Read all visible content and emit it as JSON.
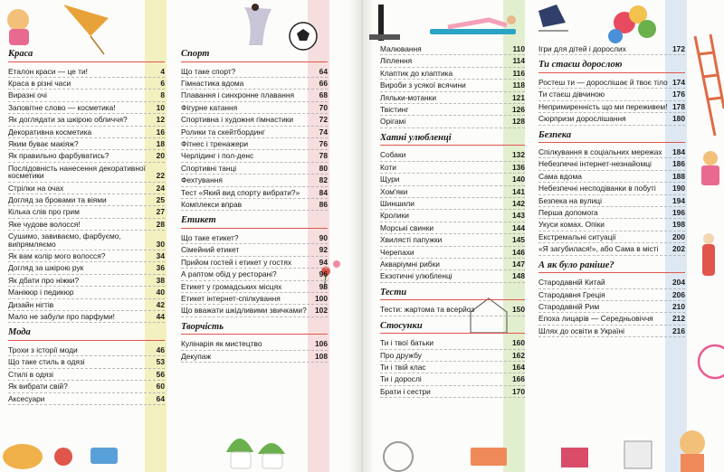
{
  "colors": {
    "heading_rule": "#e0564b",
    "strip_yellow": "#f3f0c0",
    "strip_pink": "#f6dede",
    "strip_blue": "#dde8f3"
  },
  "col1": [
    {
      "heading": "Краса",
      "items": [
        {
          "t": "Еталон краси — це ти!",
          "p": "4"
        },
        {
          "t": "Краса в різні часи",
          "p": "6"
        },
        {
          "t": "Виразні очі",
          "p": "8"
        },
        {
          "t": "Заповітне слово — косметика!",
          "p": "10"
        },
        {
          "t": "Як доглядати за шкірою обличчя?",
          "p": "12"
        },
        {
          "t": "Декоративна косметика",
          "p": "16"
        },
        {
          "t": "Яким буває макіяж?",
          "p": "18"
        },
        {
          "t": "Як правильно фарбуватись?",
          "p": "20"
        },
        {
          "t": "Послідовність нанесення декоративної косметики",
          "p": "22"
        },
        {
          "t": "Стрілки на очах",
          "p": "24"
        },
        {
          "t": "Догляд за бровами та віями",
          "p": "25"
        },
        {
          "t": "Кілька слів про грим",
          "p": "27"
        },
        {
          "t": "Яке чудове волосся!",
          "p": "28"
        },
        {
          "t": "Сушимо, завиваємо, фарбуємо, випрямляємо",
          "p": "30"
        },
        {
          "t": "Як вам колір мого волосся?",
          "p": "34"
        },
        {
          "t": "Догляд за шкірою рук",
          "p": "36"
        },
        {
          "t": "Як дбати про ніжки?",
          "p": "38"
        },
        {
          "t": "Манікюр і педикюр",
          "p": "40"
        },
        {
          "t": "Дизайн нігтів",
          "p": "42"
        },
        {
          "t": "Мало не забули про парфуми!",
          "p": "44"
        }
      ]
    },
    {
      "heading": "Мода",
      "items": [
        {
          "t": "Трохи з історії моди",
          "p": "46"
        },
        {
          "t": "Що таке стиль в одязі",
          "p": "53"
        },
        {
          "t": "Стилі в одязі",
          "p": "56"
        },
        {
          "t": "Як вибрати свій?",
          "p": "60"
        },
        {
          "t": "Аксесуари",
          "p": "64"
        }
      ]
    }
  ],
  "col2": [
    {
      "heading": "Спорт",
      "items": [
        {
          "t": "Що таке спорт?",
          "p": "64"
        },
        {
          "t": "Гімнастика вдома",
          "p": "66"
        },
        {
          "t": "Плавання і синхронне плавання",
          "p": "68"
        },
        {
          "t": "Фігурне катання",
          "p": "70"
        },
        {
          "t": "Спортивна і художня гімнастики",
          "p": "72"
        },
        {
          "t": "Ролики та скейтбординг",
          "p": "74"
        },
        {
          "t": "Фітнес і тренажери",
          "p": "76"
        },
        {
          "t": "Черлідинг і пол-денс",
          "p": "78"
        },
        {
          "t": "Спортивні танці",
          "p": "80"
        },
        {
          "t": "Фехтування",
          "p": "82"
        },
        {
          "t": "Тест «Який вид спорту вибрати?»",
          "p": "84"
        },
        {
          "t": "Комплекси вправ",
          "p": "86"
        }
      ]
    },
    {
      "heading": "Етикет",
      "items": [
        {
          "t": "Що таке етикет?",
          "p": "90"
        },
        {
          "t": "Сімейний етикет",
          "p": "92"
        },
        {
          "t": "Прийом гостей і етикет у гостях",
          "p": "94"
        },
        {
          "t": "А раптом обід у ресторані?",
          "p": "96"
        },
        {
          "t": "Етикет у громадських місцях",
          "p": "98"
        },
        {
          "t": "Етикет інтернет-спілкування",
          "p": "100"
        },
        {
          "t": "Що вважати шкідливими звичками?",
          "p": "102"
        }
      ]
    },
    {
      "heading": "Творчість",
      "items": [
        {
          "t": "Кулінарія як мистецтво",
          "p": "106"
        },
        {
          "t": "Декупаж",
          "p": "108"
        }
      ]
    }
  ],
  "col3": [
    {
      "heading": "",
      "items": [
        {
          "t": "Малювання",
          "p": "110"
        },
        {
          "t": "Ліплення",
          "p": "114"
        },
        {
          "t": "Клаптик до клаптика",
          "p": "116"
        },
        {
          "t": "Вироби з усякої всячини",
          "p": "118"
        },
        {
          "t": "Ляльки-мотанки",
          "p": "121"
        },
        {
          "t": "Твістинг",
          "p": "126"
        },
        {
          "t": "Орігамі",
          "p": "128"
        }
      ]
    },
    {
      "heading": "Хатні улюбленці",
      "items": [
        {
          "t": "Собаки",
          "p": "132"
        },
        {
          "t": "Коти",
          "p": "136"
        },
        {
          "t": "Щури",
          "p": "140"
        },
        {
          "t": "Хом'яки",
          "p": "141"
        },
        {
          "t": "Шиншили",
          "p": "142"
        },
        {
          "t": "Кролики",
          "p": "143"
        },
        {
          "t": "Морські свинки",
          "p": "144"
        },
        {
          "t": "Хвилясті папужки",
          "p": "145"
        },
        {
          "t": "Черепахи",
          "p": "146"
        },
        {
          "t": "Акваріумні рибки",
          "p": "147"
        },
        {
          "t": "Екзотичні улюбленці",
          "p": "148"
        }
      ]
    },
    {
      "heading": "Тести",
      "items": [
        {
          "t": "Тести: жартома та всерйоз",
          "p": "150"
        }
      ]
    },
    {
      "heading": "Стосунки",
      "items": [
        {
          "t": "Ти і твої батьки",
          "p": "160"
        },
        {
          "t": "Про дружбу",
          "p": "162"
        },
        {
          "t": "Ти і твій клас",
          "p": "164"
        },
        {
          "t": "Ти і дорослі",
          "p": "166"
        },
        {
          "t": "Брати і сестри",
          "p": "170"
        }
      ]
    }
  ],
  "col4": [
    {
      "heading": "",
      "items": [
        {
          "t": "Ігри для дітей і дорослих",
          "p": "172"
        }
      ]
    },
    {
      "heading": "Ти стаєш дорослою",
      "items": [
        {
          "t": "Ростеш ти — дорослішає й твоє тіло",
          "p": "174"
        },
        {
          "t": "Ти стаєш дівчиною",
          "p": "176"
        },
        {
          "t": "Непримиренність що ми переживем!",
          "p": "178"
        },
        {
          "t": "Сюрпризи дорослішання",
          "p": "180"
        }
      ]
    },
    {
      "heading": "Безпека",
      "items": [
        {
          "t": "Спілкування в соціальних мережах",
          "p": "184"
        },
        {
          "t": "Небезпечні інтернет-незнайомці",
          "p": "186"
        },
        {
          "t": "Сама вдома",
          "p": "188"
        },
        {
          "t": "Небезпечні несподіванки в побуті",
          "p": "190"
        },
        {
          "t": "Безпека на вулиці",
          "p": "194"
        },
        {
          "t": "Перша допомога",
          "p": "196"
        },
        {
          "t": "Укуси комах. Опіки",
          "p": "198"
        },
        {
          "t": "Екстремальні ситуації",
          "p": "200"
        },
        {
          "t": "«Я загубилася!», або Сама в місті",
          "p": "202"
        }
      ]
    },
    {
      "heading": "А як було раніше?",
      "items": [
        {
          "t": "Стародавній Китай",
          "p": "204"
        },
        {
          "t": "Стародавня Греція",
          "p": "206"
        },
        {
          "t": "Стародавній Рим",
          "p": "210"
        },
        {
          "t": "Епоха лицарів — Середньовіччя",
          "p": "212"
        },
        {
          "t": "Шлях до освіти в Україні",
          "p": "216"
        }
      ]
    }
  ]
}
